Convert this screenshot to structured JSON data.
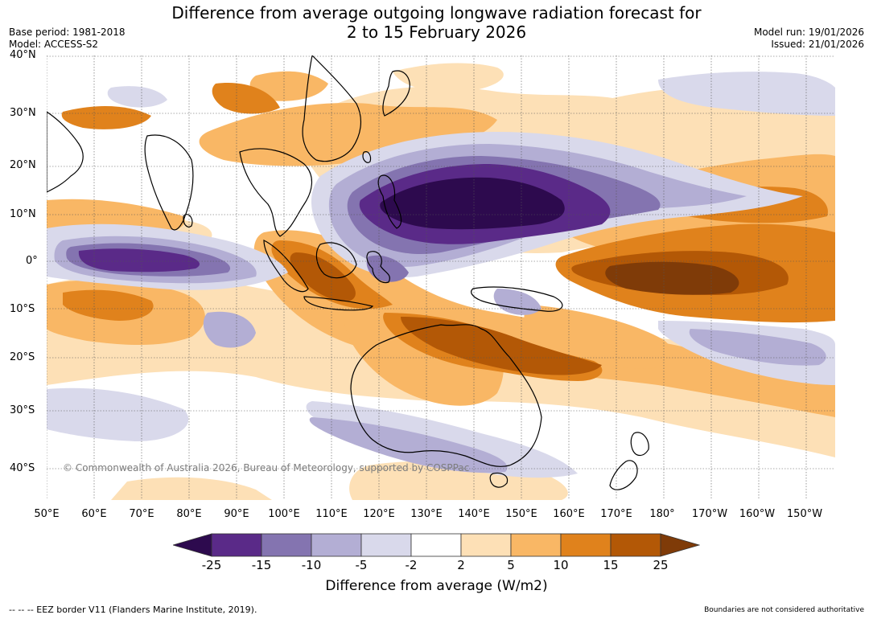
{
  "title": {
    "line1": "Difference from average outgoing longwave radiation forecast for",
    "line2": "2 to 15 February 2026"
  },
  "meta": {
    "base_period": "Base period: 1981-2018",
    "model": "Model: ACCESS-S2",
    "model_run": "Model run: 19/01/2026",
    "issued": "Issued: 21/01/2026"
  },
  "map": {
    "latitude_labels": [
      "40°N",
      "30°N",
      "20°N",
      "10°N",
      "0°",
      "10°S",
      "20°S",
      "30°S",
      "40°S"
    ],
    "longitude_labels": [
      "50°E",
      "60°E",
      "70°E",
      "80°E",
      "90°E",
      "100°E",
      "110°E",
      "120°E",
      "130°E",
      "140°E",
      "150°E",
      "160°E",
      "170°E",
      "180°",
      "170°W",
      "160°W",
      "150°W"
    ],
    "copyright": "© Commonwealth of Australia 2026, Bureau of Meteorology, supported by COSPPac",
    "colors": {
      "lt_neg25": "#2d0a4e",
      "neg25_neg15": "#5a2a88",
      "neg15_neg10": "#8474b0",
      "neg10_neg5": "#b3aed4",
      "neg5_neg2": "#d9d9eb",
      "neg2_2": "#ffffff",
      "p2_5": "#fde0b6",
      "p5_10": "#f9b765",
      "p10_15": "#e0821c",
      "p15_25": "#b35806",
      "gt25": "#7f3b08"
    }
  },
  "colorbar": {
    "ticks": [
      "-25",
      "-15",
      "-10",
      "-5",
      "-2",
      "2",
      "5",
      "10",
      "15",
      "25"
    ],
    "label": "Difference from average (W/m2)",
    "colors": [
      "#2d0a4e",
      "#5a2a88",
      "#8474b0",
      "#b3aed4",
      "#d9d9eb",
      "#ffffff",
      "#fde0b6",
      "#f9b765",
      "#e0821c",
      "#b35806",
      "#7f3b08"
    ]
  },
  "footer": {
    "eez_note": "--  --  -- EEZ border V11 (Flanders Marine Institute, 2019).",
    "boundary_note": "Boundaries are not considered authoritative"
  }
}
